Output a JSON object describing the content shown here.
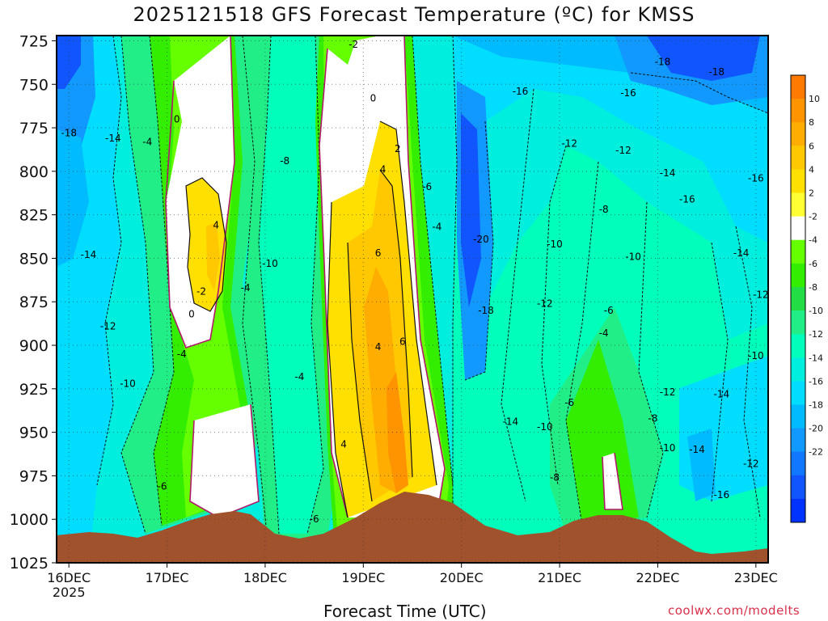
{
  "chart_data": {
    "type": "heatmap",
    "title": "2025121518 GFS Forecast Temperature (ºC) for KMSS",
    "xlabel": "Forecast Time (UTC)",
    "ylabel": "",
    "credit": "coolwx.com/modelts",
    "x_ticks": [
      {
        "day": "16DEC",
        "year": "2025"
      },
      {
        "day": "17DEC"
      },
      {
        "day": "18DEC"
      },
      {
        "day": "19DEC"
      },
      {
        "day": "20DEC"
      },
      {
        "day": "21DEC"
      },
      {
        "day": "22DEC"
      },
      {
        "day": "23DEC"
      }
    ],
    "xlim_days": [
      15.875,
      23.125
    ],
    "y_ticks": [
      725,
      750,
      775,
      800,
      825,
      850,
      875,
      900,
      925,
      950,
      975,
      1000,
      1025
    ],
    "ylim": [
      1025,
      722
    ],
    "colorbar": {
      "ticks": [
        "10",
        "8",
        "6",
        "4",
        "2",
        "-2",
        "-4",
        "-6",
        "-8",
        "-10",
        "-12",
        "-14",
        "-16",
        "-18",
        "-20",
        "-22"
      ],
      "colors": [
        "#ff7a00",
        "#ff9400",
        "#ffad00",
        "#ffc800",
        "#ffe000",
        "#ffff33",
        "#ffffff",
        "#66ff00",
        "#33ee00",
        "#22dd44",
        "#22ee88",
        "#00ffbb",
        "#00eedd",
        "#00ddff",
        "#00bbff",
        "#1199ff",
        "#1177ff",
        "#1155ff",
        "#0033ff"
      ]
    },
    "contour_labels": [
      {
        "text": "-2",
        "t": 18.9,
        "p": 727
      },
      {
        "text": "0",
        "t": 19.1,
        "p": 758
      },
      {
        "text": "0",
        "t": 17.1,
        "p": 770
      },
      {
        "text": "2",
        "t": 19.35,
        "p": 787
      },
      {
        "text": "4",
        "t": 19.2,
        "p": 799
      },
      {
        "text": "4",
        "t": 17.5,
        "p": 831
      },
      {
        "text": "6",
        "t": 19.15,
        "p": 847
      },
      {
        "text": "4",
        "t": 19.15,
        "p": 901
      },
      {
        "text": "6",
        "t": 19.4,
        "p": 898
      },
      {
        "text": "4",
        "t": 18.8,
        "p": 957
      },
      {
        "text": "0",
        "t": 17.25,
        "p": 882
      },
      {
        "text": "-2",
        "t": 17.35,
        "p": 869
      },
      {
        "text": "-4",
        "t": 17.15,
        "p": 905
      },
      {
        "text": "-4",
        "t": 16.8,
        "p": 783
      },
      {
        "text": "-4",
        "t": 17.8,
        "p": 867
      },
      {
        "text": "-4",
        "t": 18.35,
        "p": 918
      },
      {
        "text": "-4",
        "t": 19.75,
        "p": 832
      },
      {
        "text": "-4",
        "t": 21.45,
        "p": 893
      },
      {
        "text": "-6",
        "t": 16.95,
        "p": 981
      },
      {
        "text": "-6",
        "t": 18.5,
        "p": 1000
      },
      {
        "text": "-6",
        "t": 19.65,
        "p": 809
      },
      {
        "text": "-6",
        "t": 21.5,
        "p": 880
      },
      {
        "text": "-6",
        "t": 21.1,
        "p": 933
      },
      {
        "text": "-8",
        "t": 18.2,
        "p": 794
      },
      {
        "text": "-8",
        "t": 21.45,
        "p": 822
      },
      {
        "text": "-8",
        "t": 20.95,
        "p": 976
      },
      {
        "text": "-8",
        "t": 21.95,
        "p": 942
      },
      {
        "text": "-10",
        "t": 18.05,
        "p": 853
      },
      {
        "text": "-10",
        "t": 16.6,
        "p": 922
      },
      {
        "text": "-10",
        "t": 20.95,
        "p": 842
      },
      {
        "text": "-10",
        "t": 21.75,
        "p": 849
      },
      {
        "text": "-10",
        "t": 20.85,
        "p": 947
      },
      {
        "text": "-10",
        "t": 22.1,
        "p": 959
      },
      {
        "text": "-10",
        "t": 23.0,
        "p": 906
      },
      {
        "text": "-12",
        "t": 16.4,
        "p": 889
      },
      {
        "text": "-12",
        "t": 21.1,
        "p": 784
      },
      {
        "text": "-12",
        "t": 21.65,
        "p": 788
      },
      {
        "text": "-12",
        "t": 20.85,
        "p": 876
      },
      {
        "text": "-12",
        "t": 22.1,
        "p": 927
      },
      {
        "text": "-12",
        "t": 23.05,
        "p": 871
      },
      {
        "text": "-12",
        "t": 22.95,
        "p": 968
      },
      {
        "text": "-14",
        "t": 16.45,
        "p": 781
      },
      {
        "text": "-14",
        "t": 16.2,
        "p": 848
      },
      {
        "text": "-14",
        "t": 22.1,
        "p": 801
      },
      {
        "text": "-14",
        "t": 22.85,
        "p": 847
      },
      {
        "text": "-14",
        "t": 22.4,
        "p": 960
      },
      {
        "text": "-14",
        "t": 22.65,
        "p": 928
      },
      {
        "text": "-14",
        "t": 20.5,
        "p": 944
      },
      {
        "text": "-16",
        "t": 20.6,
        "p": 754
      },
      {
        "text": "-16",
        "t": 21.7,
        "p": 755
      },
      {
        "text": "-16",
        "t": 22.3,
        "p": 816
      },
      {
        "text": "-16",
        "t": 23.0,
        "p": 804
      },
      {
        "text": "-16",
        "t": 22.65,
        "p": 986
      },
      {
        "text": "-18",
        "t": 16.0,
        "p": 778
      },
      {
        "text": "-18",
        "t": 22.05,
        "p": 737
      },
      {
        "text": "-18",
        "t": 22.6,
        "p": 743
      },
      {
        "text": "-18",
        "t": 20.25,
        "p": 880
      },
      {
        "text": "-20",
        "t": 20.2,
        "p": 839
      }
    ]
  }
}
